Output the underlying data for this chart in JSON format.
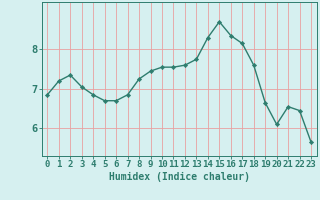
{
  "x": [
    0,
    1,
    2,
    3,
    4,
    5,
    6,
    7,
    8,
    9,
    10,
    11,
    12,
    13,
    14,
    15,
    16,
    17,
    18,
    19,
    20,
    21,
    22,
    23
  ],
  "y": [
    6.85,
    7.2,
    7.35,
    7.05,
    6.85,
    6.7,
    6.7,
    6.85,
    7.25,
    7.45,
    7.55,
    7.55,
    7.6,
    7.75,
    8.3,
    8.7,
    8.35,
    8.15,
    7.6,
    6.65,
    6.1,
    6.55,
    6.45,
    5.65
  ],
  "line_color": "#2e7d6e",
  "marker": "D",
  "marker_size": 2.2,
  "bg_color": "#d6f0f0",
  "grid_color": "#e8a0a0",
  "axis_color": "#2e7d6e",
  "xlabel": "Humidex (Indice chaleur)",
  "xlim": [
    -0.5,
    23.5
  ],
  "ylim": [
    5.3,
    9.2
  ],
  "yticks": [
    6,
    7,
    8
  ],
  "xticks": [
    0,
    1,
    2,
    3,
    4,
    5,
    6,
    7,
    8,
    9,
    10,
    11,
    12,
    13,
    14,
    15,
    16,
    17,
    18,
    19,
    20,
    21,
    22,
    23
  ],
  "xlabel_fontsize": 7,
  "tick_fontsize": 6.5,
  "ytick_fontsize": 7.5
}
